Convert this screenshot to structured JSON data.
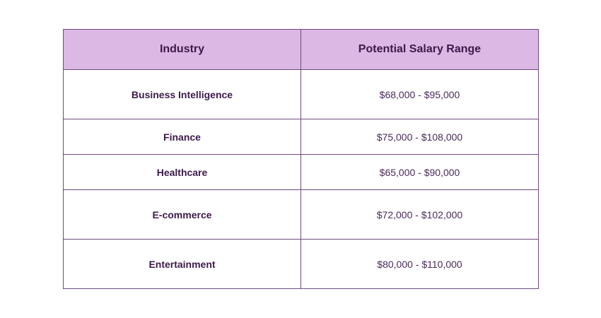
{
  "table": {
    "headers": [
      "Industry",
      "Potential Salary Range"
    ],
    "rows": [
      {
        "industry": "Business Intelligence",
        "salary": "$68,000 - $95,000"
      },
      {
        "industry": "Finance",
        "salary": "$75,000 - $108,000"
      },
      {
        "industry": "Healthcare",
        "salary": "$65,000 - $90,000"
      },
      {
        "industry": "E-commerce",
        "salary": "$72,000 - $102,000"
      },
      {
        "industry": "Entertainment",
        "salary": "$80,000 - $110,000"
      }
    ]
  },
  "colors": {
    "header_bg": "#dcb8e4",
    "border": "#6e4a7e",
    "text": "#3d1a4b"
  }
}
